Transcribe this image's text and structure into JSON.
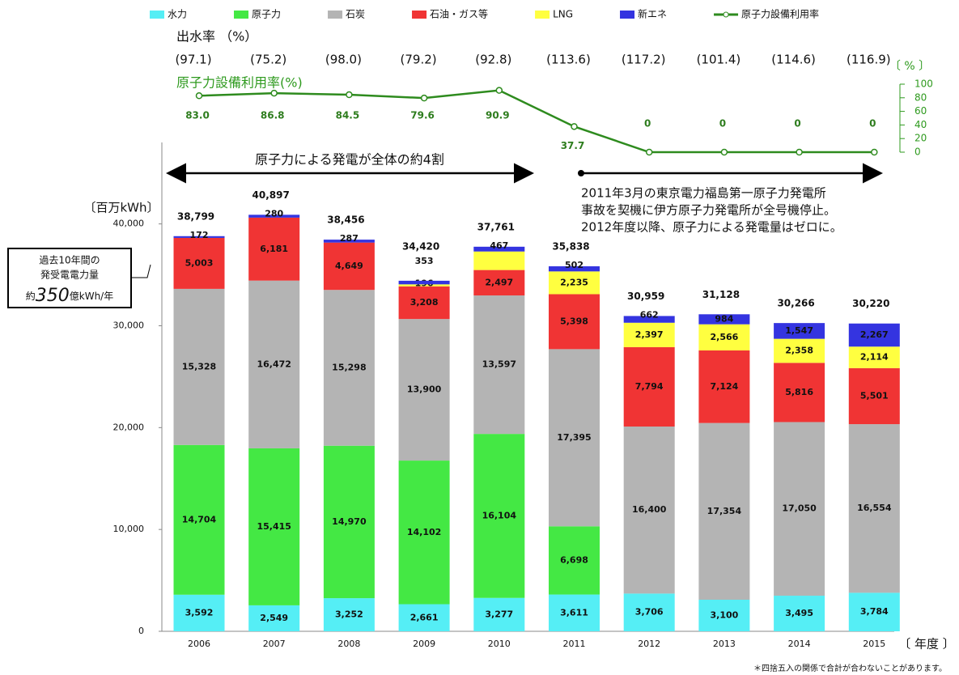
{
  "chart_data": {
    "type": "bar",
    "stacked": true,
    "categories": [
      "2006",
      "2007",
      "2008",
      "2009",
      "2010",
      "2011",
      "2012",
      "2013",
      "2014",
      "2015"
    ],
    "series": [
      {
        "name": "水力",
        "color": "#55eef5",
        "values": [
          3592,
          2549,
          3252,
          2661,
          3277,
          3611,
          3706,
          3100,
          3495,
          3784
        ],
        "value_labels": [
          "3,592",
          "2,549",
          "3,252",
          "2,661",
          "3,277",
          "3,611",
          "3,706",
          "3,100",
          "3,495",
          "3,784"
        ]
      },
      {
        "name": "原子力",
        "color": "#44e844",
        "values": [
          14704,
          15415,
          14970,
          14102,
          16104,
          6698,
          0,
          null,
          null,
          null
        ],
        "value_labels": [
          "14,704",
          "15,415",
          "14,970",
          "14,102",
          "16,104",
          "6,698",
          "0",
          null,
          null,
          null
        ]
      },
      {
        "name": "石炭",
        "color": "#b4b4b4",
        "values": [
          15328,
          16472,
          15298,
          13900,
          13597,
          17395,
          16400,
          17354,
          17050,
          16554
        ],
        "value_labels": [
          "15,328",
          "16,472",
          "15,298",
          "13,900",
          "13,597",
          "17,395",
          "16,400",
          "17,354",
          "17,050",
          "16,554"
        ]
      },
      {
        "name": "石油・ガス等",
        "color": "#f03434",
        "values": [
          5003,
          6181,
          4649,
          3208,
          2497,
          5398,
          7794,
          7124,
          5816,
          5501
        ],
        "value_labels": [
          "5,003",
          "6,181",
          "4,649",
          "3,208",
          "2,497",
          "5,398",
          "7,794",
          "7,124",
          "5,816",
          "5,501"
        ]
      },
      {
        "name": "LNG",
        "color": "#ffff40",
        "values": [
          null,
          null,
          null,
          196,
          1819,
          2235,
          2397,
          2566,
          2358,
          2114
        ],
        "value_labels": [
          null,
          null,
          null,
          "196",
          null,
          "2,235",
          "2,397",
          "2,566",
          "2,358",
          "2,114"
        ]
      },
      {
        "name": "新エネ",
        "color": "#3434e0",
        "values": [
          172,
          280,
          287,
          353,
          467,
          502,
          662,
          984,
          1547,
          2267
        ],
        "value_labels": [
          "172",
          "280",
          "287",
          "353",
          "467",
          "502",
          "662",
          "984",
          "1,547",
          "2,267"
        ]
      }
    ],
    "totals": [
      38799,
      40897,
      38456,
      34420,
      37761,
      35838,
      30959,
      31128,
      30266,
      30220
    ],
    "total_labels": [
      "38,799",
      "40,897",
      "38,456",
      "34,420",
      "37,761",
      "35,838",
      "30,959",
      "31,128",
      "30,266",
      "30,220"
    ],
    "ylim": [
      0,
      48000
    ],
    "yticks": [
      0,
      {
        "value": 10000,
        "label": "10,000"
      },
      {
        "value": 20000,
        "label": "20,000"
      },
      {
        "value": 30000,
        "label": "30,000"
      },
      {
        "value": 40000,
        "label": "40,000"
      }
    ],
    "y_unit": "〔百万kWh〕",
    "x_unit": "〔 年度 〕",
    "line": {
      "name": "原子力設備利用率",
      "color": "#2e8b1e",
      "axis": "y2",
      "values": [
        83.0,
        86.8,
        84.5,
        79.6,
        90.9,
        37.7,
        0,
        0,
        0,
        0
      ],
      "value_labels": [
        "83.0",
        "86.8",
        "84.5",
        "79.6",
        "90.9",
        "37.7",
        "0",
        "0",
        "0",
        "0"
      ]
    },
    "y2lim": [
      0,
      100
    ],
    "y2ticks": [
      0,
      20,
      40,
      60,
      80,
      100
    ],
    "y2_unit": "〔 % 〕",
    "line_title": "原子力設備利用率(%)",
    "flow_title": "出水率 （%）",
    "flow_labels": [
      "(97.1)",
      "(75.2)",
      "(98.0)",
      "(79.2)",
      "(92.8)",
      "(113.6)",
      "(117.2)",
      "(101.4)",
      "(114.6)",
      "(116.9)"
    ],
    "arrow_left_text": "原子力による発電が全体の約4割",
    "annotation": [
      "2011年3月の東京電力福島第一原子力発電所",
      "事故を契機に伊方原子力発電所が全号機停止。",
      "2012年度以降、原子力による発電量はゼロに。"
    ],
    "box": {
      "lines": [
        "過去10年間の",
        "発受電電力量"
      ],
      "prefix": "約",
      "number": "350",
      "suffix": "億kWh/年"
    },
    "footnote": "＊四捨五入の関係で合計が合わないことがあります。"
  }
}
